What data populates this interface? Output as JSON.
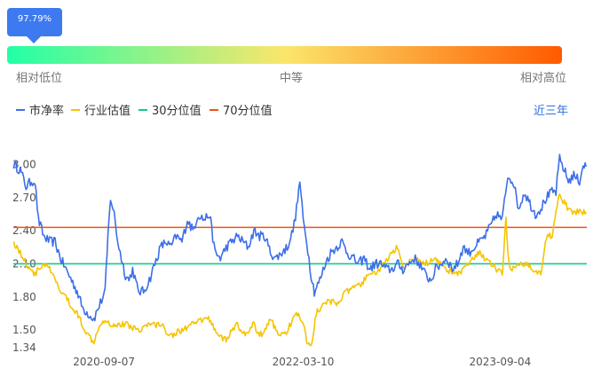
{
  "percentile_badge": "97.79%",
  "percentile_value": 0.9779,
  "range_labels": {
    "low": "相对低位",
    "mid": "中等",
    "high": "相对高位"
  },
  "period_selector": "近三年",
  "colors": {
    "pb": "#3d6fe8",
    "industry": "#f5c400",
    "p30": "#14c98a",
    "p70": "#f0540f",
    "badge": "#3d7af0",
    "gradient": [
      "#22ffa6",
      "#fbe66b",
      "#ff5a00"
    ]
  },
  "chart_data": {
    "type": "line",
    "title": "",
    "xlabel": "",
    "ylabel": "",
    "x_ticks": [
      "2020-09-07",
      "2022-03-10",
      "2023-09-04"
    ],
    "x_range": [
      "2020-01-01",
      "2024-04-30"
    ],
    "y_ticks": [
      1.34,
      1.5,
      1.8,
      2.1,
      2.4,
      2.7,
      3.0
    ],
    "ylim": [
      1.34,
      3.1
    ],
    "legend": "top-left",
    "series": [
      {
        "name": "市净率",
        "color": "#3d6fe8",
        "points": [
          [
            "2020-01-02",
            3.0
          ],
          [
            "2020-01-20",
            2.95
          ],
          [
            "2020-02-05",
            2.8
          ],
          [
            "2020-02-20",
            2.85
          ],
          [
            "2020-03-01",
            2.85
          ],
          [
            "2020-03-10",
            2.5
          ],
          [
            "2020-03-25",
            2.35
          ],
          [
            "2020-04-10",
            2.3
          ],
          [
            "2020-04-25",
            2.3
          ],
          [
            "2020-05-10",
            2.15
          ],
          [
            "2020-05-25",
            2.05
          ],
          [
            "2020-06-10",
            1.95
          ],
          [
            "2020-06-25",
            1.85
          ],
          [
            "2020-07-10",
            1.7
          ],
          [
            "2020-07-25",
            1.65
          ],
          [
            "2020-08-10",
            1.6
          ],
          [
            "2020-08-25",
            1.72
          ],
          [
            "2020-09-10",
            1.85
          ],
          [
            "2020-09-18",
            2.35
          ],
          [
            "2020-09-25",
            2.7
          ],
          [
            "2020-10-05",
            2.55
          ],
          [
            "2020-10-15",
            2.3
          ],
          [
            "2020-10-25",
            2.15
          ],
          [
            "2020-11-05",
            2.0
          ],
          [
            "2020-11-15",
            1.95
          ],
          [
            "2020-11-25",
            2.05
          ],
          [
            "2020-12-10",
            1.85
          ],
          [
            "2020-12-25",
            1.85
          ],
          [
            "2021-01-10",
            1.95
          ],
          [
            "2021-01-25",
            2.1
          ],
          [
            "2021-02-10",
            2.25
          ],
          [
            "2021-02-25",
            2.3
          ],
          [
            "2021-03-10",
            2.25
          ],
          [
            "2021-03-25",
            2.35
          ],
          [
            "2021-04-10",
            2.3
          ],
          [
            "2021-04-25",
            2.5
          ],
          [
            "2021-05-10",
            2.4
          ],
          [
            "2021-05-25",
            2.55
          ],
          [
            "2021-06-10",
            2.5
          ],
          [
            "2021-06-25",
            2.55
          ],
          [
            "2021-07-10",
            2.2
          ],
          [
            "2021-07-25",
            2.15
          ],
          [
            "2021-08-10",
            2.25
          ],
          [
            "2021-08-25",
            2.3
          ],
          [
            "2021-09-10",
            2.35
          ],
          [
            "2021-09-25",
            2.3
          ],
          [
            "2021-10-10",
            2.25
          ],
          [
            "2021-10-25",
            2.4
          ],
          [
            "2021-11-10",
            2.35
          ],
          [
            "2021-11-25",
            2.35
          ],
          [
            "2021-12-10",
            2.2
          ],
          [
            "2021-12-25",
            2.15
          ],
          [
            "2022-01-10",
            2.2
          ],
          [
            "2022-01-25",
            2.25
          ],
          [
            "2022-02-10",
            2.4
          ],
          [
            "2022-02-20",
            2.6
          ],
          [
            "2022-03-01",
            2.85
          ],
          [
            "2022-03-10",
            2.5
          ],
          [
            "2022-03-20",
            2.3
          ],
          [
            "2022-04-01",
            2.0
          ],
          [
            "2022-04-10",
            1.85
          ],
          [
            "2022-04-25",
            1.95
          ],
          [
            "2022-05-10",
            2.1
          ],
          [
            "2022-05-25",
            2.2
          ],
          [
            "2022-06-10",
            2.25
          ],
          [
            "2022-06-25",
            2.3
          ],
          [
            "2022-07-10",
            2.2
          ],
          [
            "2022-07-25",
            2.15
          ],
          [
            "2022-08-10",
            2.1
          ],
          [
            "2022-08-25",
            2.15
          ],
          [
            "2022-09-10",
            2.05
          ],
          [
            "2022-09-25",
            2.1
          ],
          [
            "2022-10-10",
            2.1
          ],
          [
            "2022-10-25",
            2.05
          ],
          [
            "2022-11-10",
            2.05
          ],
          [
            "2022-11-25",
            2.1
          ],
          [
            "2022-12-10",
            2.05
          ],
          [
            "2022-12-25",
            2.1
          ],
          [
            "2023-01-10",
            2.15
          ],
          [
            "2023-01-25",
            2.1
          ],
          [
            "2023-02-10",
            2.0
          ],
          [
            "2023-02-25",
            1.95
          ],
          [
            "2023-03-10",
            2.05
          ],
          [
            "2023-03-25",
            2.1
          ],
          [
            "2023-04-10",
            2.15
          ],
          [
            "2023-04-25",
            2.05
          ],
          [
            "2023-05-10",
            2.1
          ],
          [
            "2023-05-25",
            2.25
          ],
          [
            "2023-06-10",
            2.2
          ],
          [
            "2023-06-25",
            2.25
          ],
          [
            "2023-07-10",
            2.3
          ],
          [
            "2023-07-25",
            2.35
          ],
          [
            "2023-08-10",
            2.45
          ],
          [
            "2023-08-25",
            2.55
          ],
          [
            "2023-09-10",
            2.5
          ],
          [
            "2023-09-25",
            2.9
          ],
          [
            "2023-10-10",
            2.85
          ],
          [
            "2023-10-25",
            2.6
          ],
          [
            "2023-11-10",
            2.75
          ],
          [
            "2023-11-25",
            2.65
          ],
          [
            "2023-12-10",
            2.55
          ],
          [
            "2023-12-25",
            2.6
          ],
          [
            "2024-01-10",
            2.7
          ],
          [
            "2024-01-25",
            2.75
          ],
          [
            "2024-02-05",
            2.75
          ],
          [
            "2024-02-15",
            3.05
          ],
          [
            "2024-02-28",
            2.95
          ],
          [
            "2024-03-10",
            2.85
          ],
          [
            "2024-03-25",
            2.9
          ],
          [
            "2024-04-10",
            2.85
          ],
          [
            "2024-04-20",
            3.0
          ],
          [
            "2024-04-28",
            2.98
          ]
        ]
      },
      {
        "name": "行业估值",
        "color": "#f5c400",
        "points": [
          [
            "2020-01-02",
            2.3
          ],
          [
            "2020-01-20",
            2.2
          ],
          [
            "2020-02-05",
            2.1
          ],
          [
            "2020-02-20",
            2.05
          ],
          [
            "2020-03-01",
            2.0
          ],
          [
            "2020-03-10",
            2.05
          ],
          [
            "2020-03-25",
            2.1
          ],
          [
            "2020-04-10",
            2.05
          ],
          [
            "2020-04-25",
            1.95
          ],
          [
            "2020-05-10",
            1.85
          ],
          [
            "2020-05-25",
            1.8
          ],
          [
            "2020-06-10",
            1.7
          ],
          [
            "2020-06-25",
            1.65
          ],
          [
            "2020-07-10",
            1.55
          ],
          [
            "2020-07-25",
            1.45
          ],
          [
            "2020-08-10",
            1.4
          ],
          [
            "2020-08-25",
            1.55
          ],
          [
            "2020-09-10",
            1.6
          ],
          [
            "2020-09-25",
            1.55
          ],
          [
            "2020-10-10",
            1.55
          ],
          [
            "2020-11-10",
            1.55
          ],
          [
            "2020-12-10",
            1.5
          ],
          [
            "2021-01-10",
            1.55
          ],
          [
            "2021-02-10",
            1.55
          ],
          [
            "2021-03-10",
            1.45
          ],
          [
            "2021-04-10",
            1.5
          ],
          [
            "2021-05-10",
            1.55
          ],
          [
            "2021-06-10",
            1.6
          ],
          [
            "2021-06-25",
            1.6
          ],
          [
            "2021-07-10",
            1.5
          ],
          [
            "2021-07-25",
            1.45
          ],
          [
            "2021-08-10",
            1.4
          ],
          [
            "2021-08-25",
            1.5
          ],
          [
            "2021-09-10",
            1.55
          ],
          [
            "2021-09-25",
            1.45
          ],
          [
            "2021-10-10",
            1.5
          ],
          [
            "2021-10-25",
            1.55
          ],
          [
            "2021-11-10",
            1.45
          ],
          [
            "2021-11-25",
            1.5
          ],
          [
            "2021-12-10",
            1.6
          ],
          [
            "2021-12-25",
            1.5
          ],
          [
            "2022-01-10",
            1.45
          ],
          [
            "2022-01-25",
            1.5
          ],
          [
            "2022-02-10",
            1.6
          ],
          [
            "2022-02-25",
            1.65
          ],
          [
            "2022-03-10",
            1.55
          ],
          [
            "2022-03-20",
            1.4
          ],
          [
            "2022-04-01",
            1.35
          ],
          [
            "2022-04-15",
            1.65
          ],
          [
            "2022-05-10",
            1.75
          ],
          [
            "2022-06-10",
            1.75
          ],
          [
            "2022-07-10",
            1.85
          ],
          [
            "2022-08-10",
            1.9
          ],
          [
            "2022-09-10",
            2.0
          ],
          [
            "2022-10-10",
            2.05
          ],
          [
            "2022-11-10",
            2.2
          ],
          [
            "2022-11-25",
            2.25
          ],
          [
            "2022-12-10",
            2.05
          ],
          [
            "2023-01-10",
            2.15
          ],
          [
            "2023-02-10",
            2.1
          ],
          [
            "2023-03-10",
            2.15
          ],
          [
            "2023-04-10",
            2.05
          ],
          [
            "2023-05-10",
            2.0
          ],
          [
            "2023-06-10",
            2.1
          ],
          [
            "2023-07-10",
            2.2
          ],
          [
            "2023-08-10",
            2.1
          ],
          [
            "2023-09-10",
            2.0
          ],
          [
            "2023-09-20",
            2.5
          ],
          [
            "2023-09-28",
            2.1
          ],
          [
            "2023-10-10",
            2.05
          ],
          [
            "2023-11-10",
            2.1
          ],
          [
            "2023-12-10",
            2.05
          ],
          [
            "2023-12-25",
            2.0
          ],
          [
            "2024-01-10",
            2.35
          ],
          [
            "2024-01-25",
            2.35
          ],
          [
            "2024-02-05",
            2.6
          ],
          [
            "2024-02-15",
            2.72
          ],
          [
            "2024-02-28",
            2.65
          ],
          [
            "2024-03-10",
            2.6
          ],
          [
            "2024-03-25",
            2.55
          ],
          [
            "2024-04-10",
            2.58
          ],
          [
            "2024-04-28",
            2.57
          ]
        ]
      },
      {
        "name": "30分位值",
        "color": "#14c98a",
        "constant": 2.1
      },
      {
        "name": "70分位值",
        "color": "#f0540f",
        "constant": 2.43
      }
    ]
  }
}
